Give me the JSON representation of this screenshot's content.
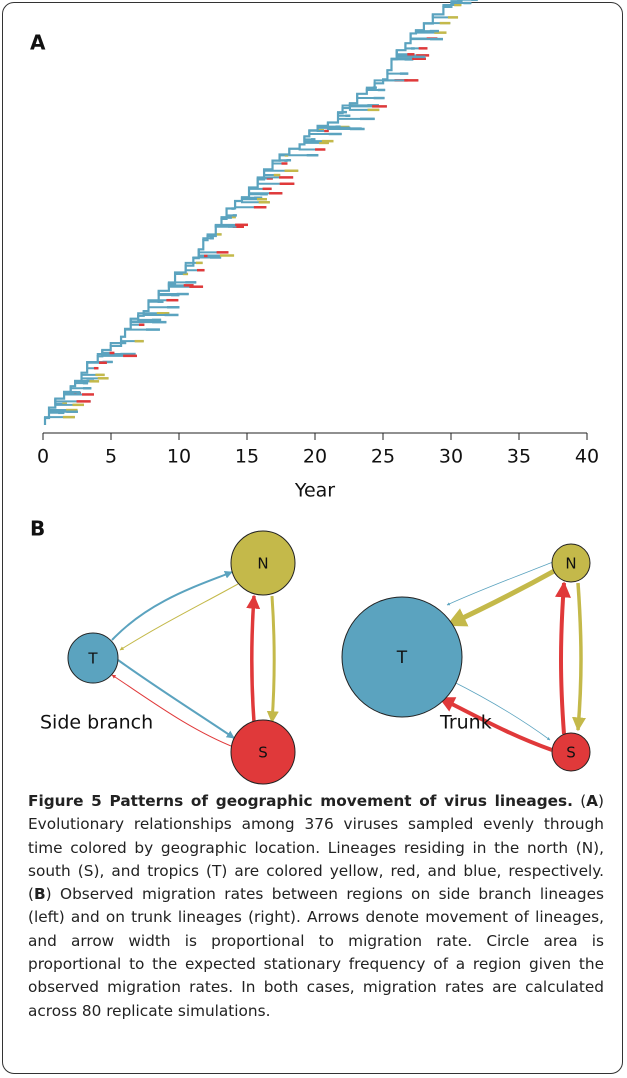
{
  "panel_a": {
    "label": "A",
    "xlabel": "Year",
    "xlim": [
      0,
      40
    ],
    "xticks": [
      0,
      5,
      10,
      15,
      20,
      25,
      30,
      35,
      40
    ]
  },
  "panel_b": {
    "label": "B",
    "diagrams": [
      {
        "title": "Side branch",
        "nodes": [
          "T",
          "N",
          "S"
        ]
      },
      {
        "title": "Trunk",
        "nodes": [
          "T",
          "N",
          "S"
        ]
      }
    ]
  },
  "caption": {
    "title": "Figure 5 Patterns of geographic movement of virus lineages.",
    "parts": [
      "(",
      "A",
      ") Evolutionary relationships among 376 viruses sampled evenly through time colored by geographic location. Lineages residing in the north (N), south (S), and tropics (T) are colored yellow, red, and blue, respectively. (",
      "B",
      ") Observed migration rates between regions on side branch lineages (left) and on trunk lineages (right). Arrows denote movement of lineages, and arrow width is proportional to migration rate. Circle area is proportional to the expected stationary frequency of a region given the observed migration rates. In both cases, migration rates are calculated across 80 replicate simulations."
    ]
  }
}
